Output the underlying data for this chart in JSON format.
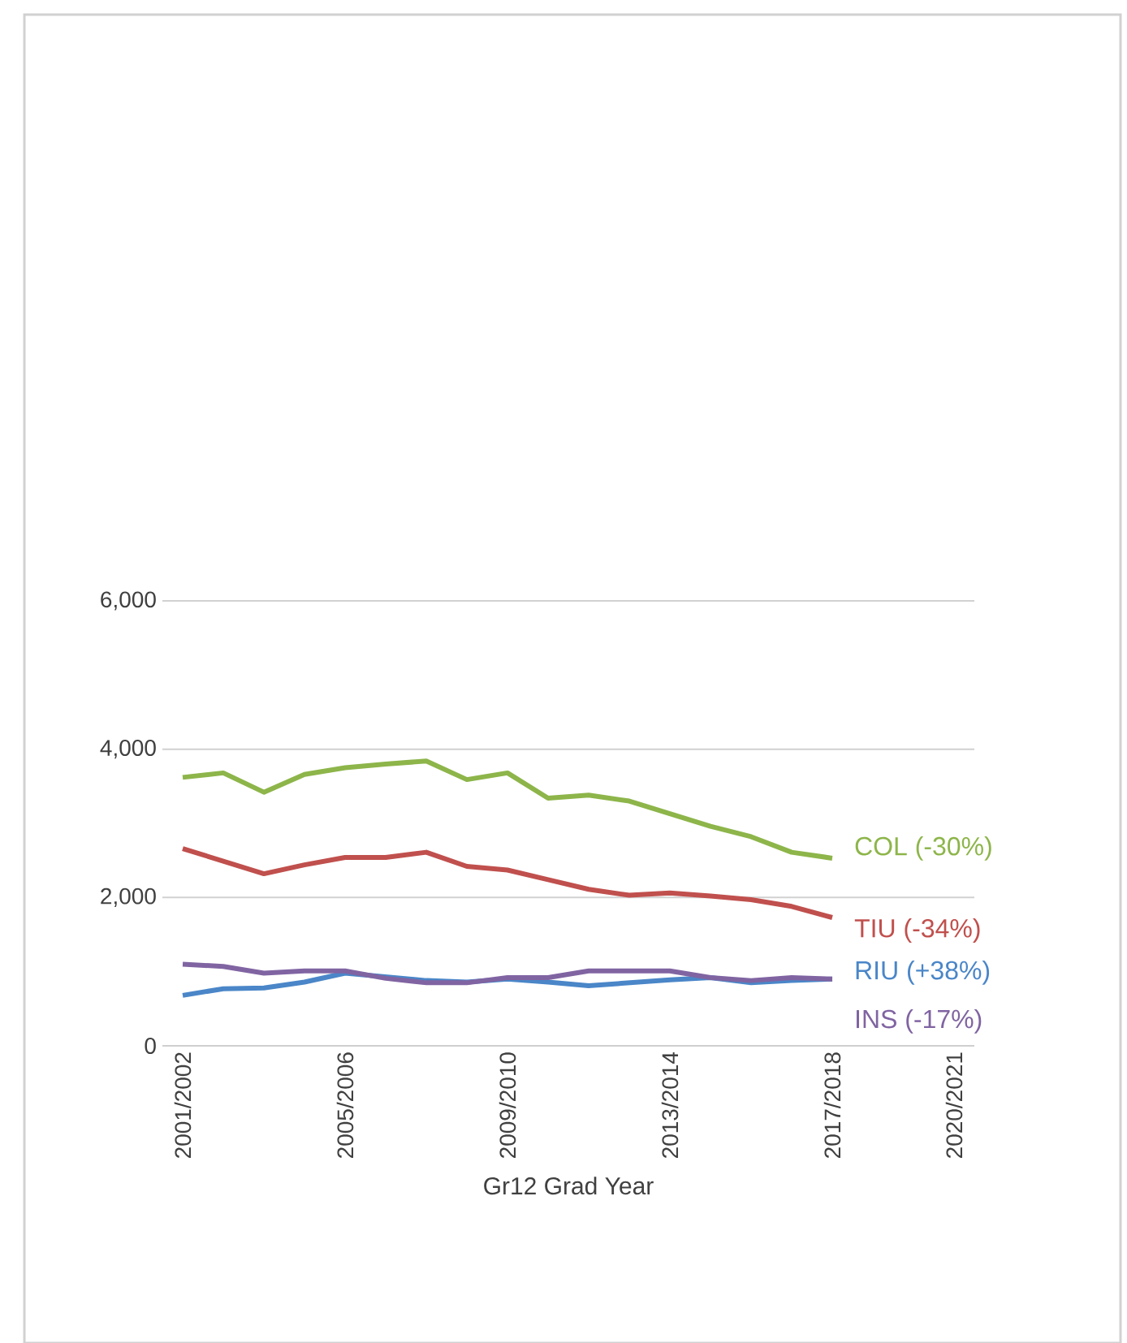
{
  "chart_data": {
    "type": "line",
    "xlabel": "Gr12 Grad Year",
    "categories": [
      "2001/2002",
      null,
      null,
      null,
      "2005/2006",
      null,
      null,
      null,
      "2009/2010",
      null,
      null,
      null,
      "2013/2014",
      null,
      null,
      null,
      "2017/2018",
      null,
      null,
      "2020/2021"
    ],
    "series": [
      {
        "name": "COL (-30%)",
        "color": "#8db54a",
        "values": [
          3620,
          3680,
          3420,
          3660,
          3750,
          3800,
          3840,
          3590,
          3680,
          3340,
          3380,
          3300,
          3130,
          2960,
          2820,
          2610,
          2530,
          null,
          null,
          null
        ]
      },
      {
        "name": "TIU (-34%)",
        "color": "#c0504d",
        "values": [
          2660,
          2490,
          2320,
          2440,
          2540,
          2540,
          2610,
          2420,
          2370,
          2240,
          2110,
          2030,
          2060,
          2020,
          1970,
          1880,
          1730,
          null,
          null,
          null
        ]
      },
      {
        "name": "RIU (+38%)",
        "color": "#4a86c8",
        "values": [
          680,
          770,
          780,
          860,
          980,
          930,
          880,
          860,
          900,
          860,
          810,
          850,
          890,
          920,
          850,
          880,
          900,
          null,
          null,
          null
        ]
      },
      {
        "name": "INS (-17%)",
        "color": "#8064a2",
        "values": [
          1100,
          1070,
          980,
          1010,
          1010,
          910,
          850,
          850,
          920,
          920,
          1010,
          1010,
          1010,
          920,
          880,
          920,
          900,
          null,
          null,
          null
        ]
      }
    ],
    "ylim": [
      0,
      6000
    ],
    "yticks": [
      {
        "value": 0,
        "label": "0"
      },
      {
        "value": 2000,
        "label": "2,000"
      },
      {
        "value": 4000,
        "label": "4,000"
      },
      {
        "value": 6000,
        "label": "6,000"
      }
    ],
    "grid": "y",
    "legend": false,
    "marker": "none",
    "line_style": "solid"
  }
}
